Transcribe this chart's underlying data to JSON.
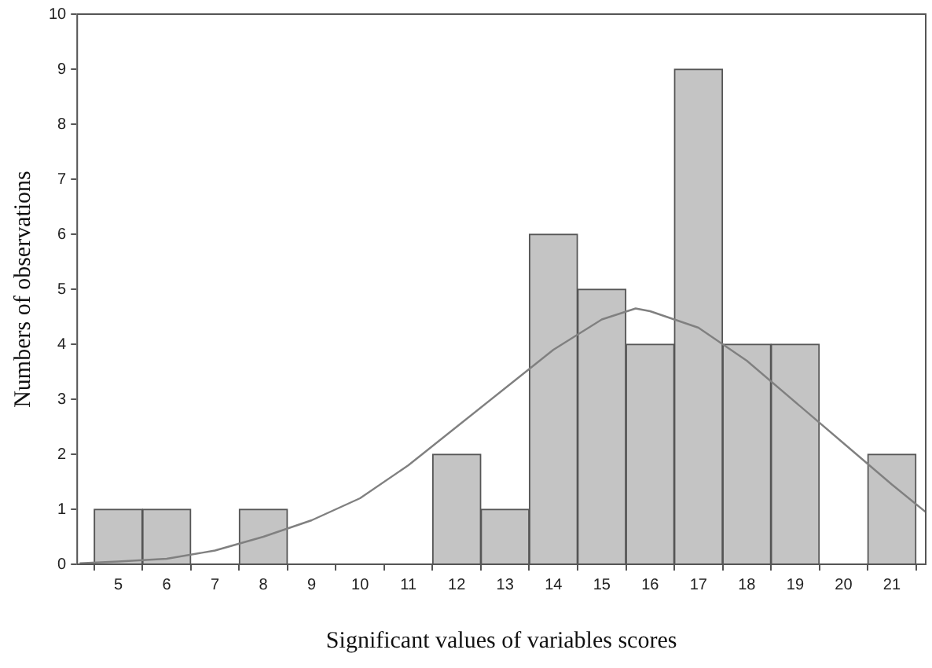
{
  "chart_data": {
    "type": "histogram",
    "xlabel": "Significant values of variables scores",
    "ylabel": "Numbers of observations",
    "xlim": [
      4.15,
      21.7
    ],
    "xticks": [
      5,
      6,
      7,
      8,
      9,
      10,
      11,
      12,
      13,
      14,
      15,
      16,
      17,
      18,
      19,
      20,
      21
    ],
    "ylim": [
      0,
      10
    ],
    "yticks": [
      0,
      1,
      2,
      3,
      4,
      5,
      6,
      7,
      8,
      9,
      10
    ],
    "grid": false,
    "legend": false,
    "series": [
      {
        "color": "#c4c4c4",
        "bins": [
          4.5,
          5.5,
          6.5,
          7.5,
          8.5,
          9.5,
          10.5,
          11.5,
          12.5,
          13.5,
          14.5,
          15.5,
          16.5,
          17.5,
          18.5,
          19.5,
          20.5,
          21.5
        ],
        "values": [
          1,
          1,
          0,
          1,
          0,
          0,
          0,
          2,
          1,
          6,
          5,
          4,
          9,
          4,
          4,
          0,
          2
        ]
      },
      {
        "type": "line",
        "color": "#808080",
        "x": [
          4.2,
          5,
          6,
          7,
          8,
          9,
          10,
          11,
          12,
          13,
          14,
          15,
          15.7,
          16,
          17,
          18,
          19,
          20,
          21,
          21.7
        ],
        "values": [
          0.02,
          0.05,
          0.1,
          0.25,
          0.5,
          0.8,
          1.2,
          1.8,
          2.5,
          3.2,
          3.9,
          4.45,
          4.65,
          4.6,
          4.3,
          3.7,
          2.95,
          2.2,
          1.45,
          0.95
        ]
      }
    ]
  }
}
